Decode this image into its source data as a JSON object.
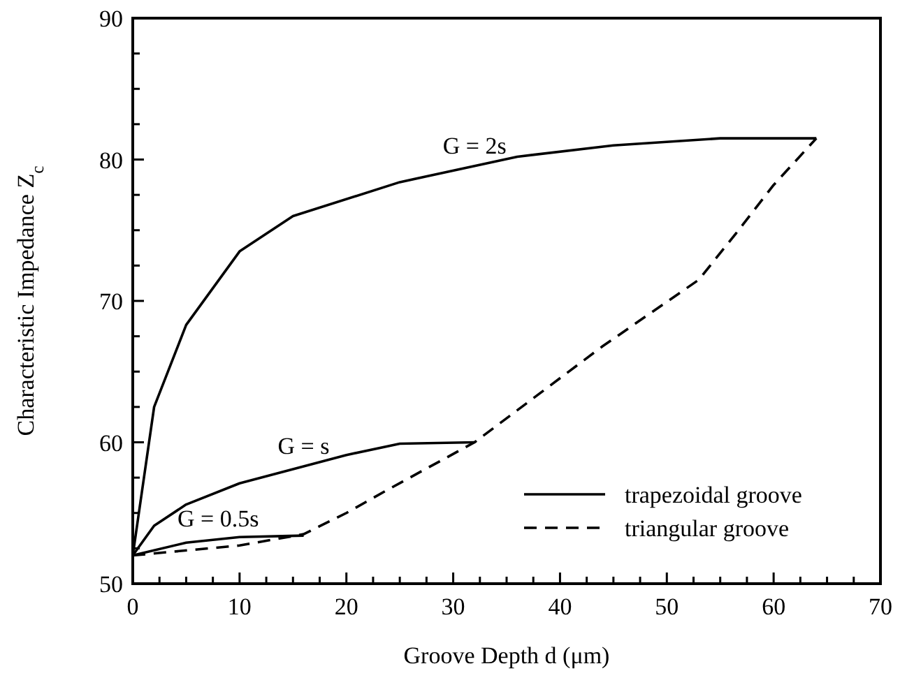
{
  "chart_data": {
    "type": "line",
    "xlabel": "Groove Depth d (μm)",
    "ylabel": "Characteristic Impedance Z$_{c}$",
    "xlim": [
      0,
      70
    ],
    "ylim": [
      50,
      90
    ],
    "xticks": [
      0,
      {
        "value": 2.5,
        "label": null
      },
      {
        "value": 5,
        "label": null
      },
      {
        "value": 7.5,
        "label": null
      },
      10,
      {
        "value": 12.5,
        "label": null
      },
      {
        "value": 15,
        "label": null
      },
      {
        "value": 17.5,
        "label": null
      },
      20,
      {
        "value": 22.5,
        "label": null
      },
      {
        "value": 25,
        "label": null
      },
      {
        "value": 27.5,
        "label": null
      },
      30,
      {
        "value": 32.5,
        "label": null
      },
      {
        "value": 35,
        "label": null
      },
      {
        "value": 37.5,
        "label": null
      },
      40,
      {
        "value": 42.5,
        "label": null
      },
      {
        "value": 45,
        "label": null
      },
      {
        "value": 47.5,
        "label": null
      },
      50,
      {
        "value": 52.5,
        "label": null
      },
      {
        "value": 55,
        "label": null
      },
      {
        "value": 57.5,
        "label": null
      },
      60,
      {
        "value": 62.5,
        "label": null
      },
      {
        "value": 65,
        "label": null
      },
      {
        "value": 67.5,
        "label": null
      },
      70
    ],
    "yticks": [
      50,
      {
        "value": 52.5,
        "label": null
      },
      {
        "value": 55,
        "label": null
      },
      {
        "value": 57.5,
        "label": null
      },
      60,
      {
        "value": 62.5,
        "label": null
      },
      {
        "value": 65,
        "label": null
      },
      {
        "value": 67.5,
        "label": null
      },
      70,
      {
        "value": 72.5,
        "label": null
      },
      {
        "value": 75,
        "label": null
      },
      {
        "value": 77.5,
        "label": null
      },
      80,
      {
        "value": 82.5,
        "label": null
      },
      {
        "value": 85,
        "label": null
      },
      {
        "value": 87.5,
        "label": null
      },
      90
    ],
    "series": [
      {
        "name": "trapezoidal groove",
        "color": "#000000",
        "line_style": "solid",
        "x": [
          0,
          2,
          5,
          10,
          15,
          25,
          36,
          45,
          55,
          64
        ],
        "values": [
          52,
          62.5,
          68.3,
          73.5,
          76,
          78.4,
          80.2,
          81,
          81.5,
          81.5
        ]
      },
      {
        "color": "#000000",
        "line_style": "solid",
        "x": [
          0,
          2,
          5,
          10,
          20,
          25,
          32
        ],
        "values": [
          52,
          54.1,
          55.6,
          57.1,
          59.1,
          59.9,
          60
        ]
      },
      {
        "color": "#000000",
        "line_style": "solid",
        "x": [
          0,
          5,
          10,
          16
        ],
        "values": [
          52,
          52.9,
          53.3,
          53.4
        ]
      },
      {
        "name": "triangular groove",
        "color": "#000000",
        "line_style": "dashed",
        "x": [
          0,
          10,
          16,
          20,
          24,
          32,
          38,
          44,
          53,
          56.5,
          60,
          64
        ],
        "values": [
          52,
          52.7,
          53.5,
          55,
          56.7,
          60,
          63.4,
          66.8,
          71.5,
          74.8,
          78.2,
          81.5
        ]
      }
    ],
    "annotations": [
      "G = 2s",
      "G = s",
      "G = 0.5s"
    ],
    "legend": "bottom right",
    "grid": false
  }
}
